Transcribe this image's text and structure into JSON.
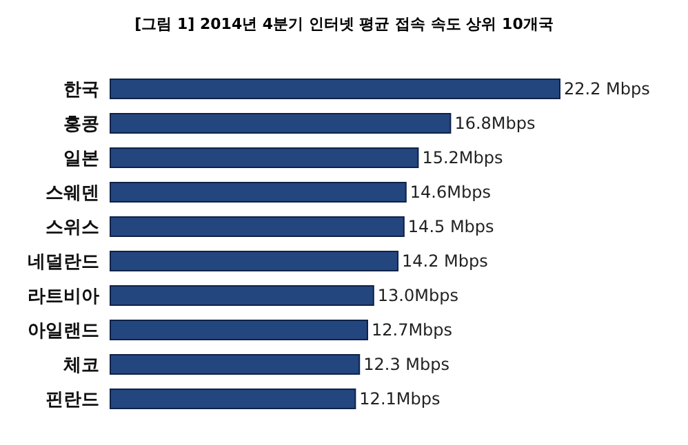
{
  "chart_data": {
    "type": "bar",
    "orientation": "horizontal",
    "title": "[그림 1] 2014년 4분기 인터넷 평균 접속 속도 상위 10개국",
    "categories": [
      "한국",
      "홍콩",
      "일본",
      "스웨덴",
      "스위스",
      "네덜란드",
      "라트비아",
      "아일랜드",
      "체코",
      "핀란드"
    ],
    "values": [
      22.2,
      16.8,
      15.2,
      14.6,
      14.5,
      14.2,
      13.0,
      12.7,
      12.3,
      12.1
    ],
    "value_labels": [
      "22.2 Mbps",
      "16.8Mbps",
      "15.2Mbps",
      "14.6Mbps",
      "14.5 Mbps",
      "14.2 Mbps",
      "13.0Mbps",
      "12.7Mbps",
      "12.3 Mbps",
      "12.1Mbps"
    ],
    "color": "#24467f",
    "grid": false,
    "legend": false
  }
}
